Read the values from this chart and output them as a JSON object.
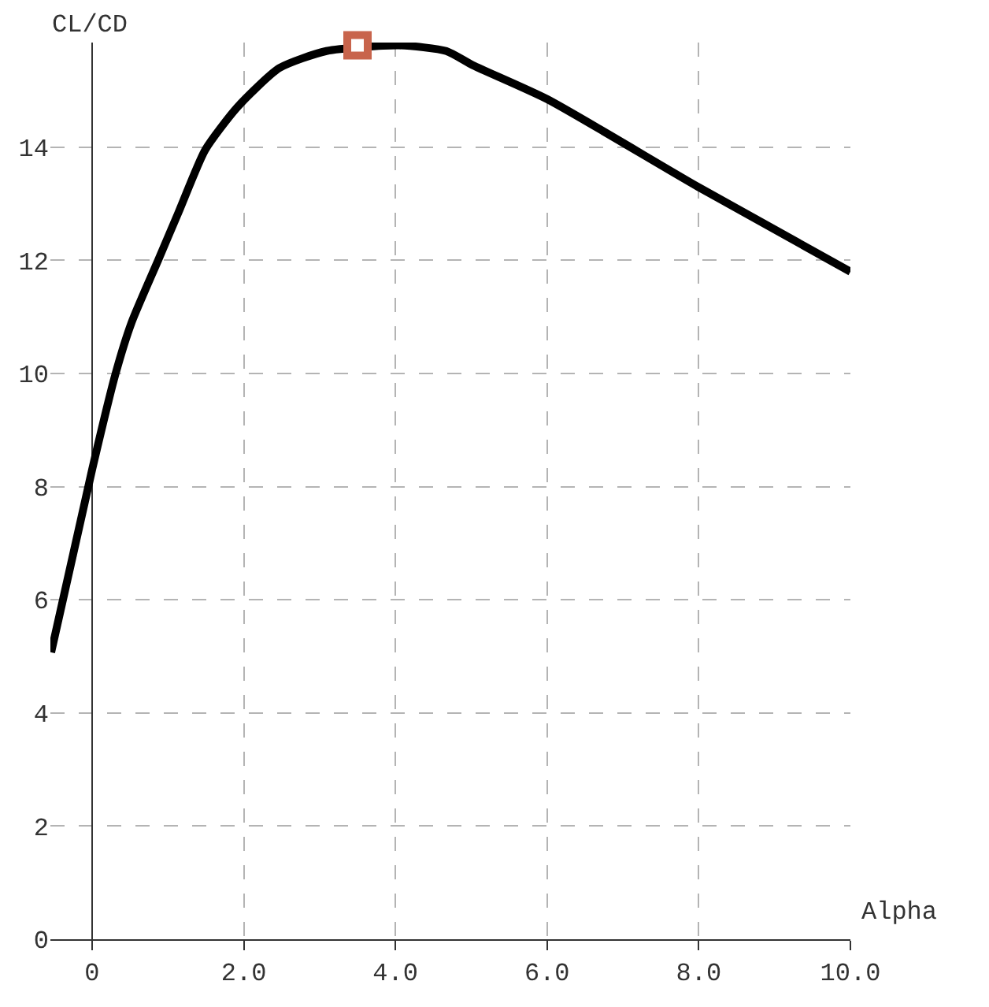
{
  "chart_data": {
    "type": "line",
    "xlabel": "Alpha",
    "ylabel": "CL/CD",
    "xlim": [
      -0.55,
      10
    ],
    "ylim": [
      0,
      15.85
    ],
    "xticks": [
      {
        "value": 0,
        "label": "0"
      },
      {
        "value": 2,
        "label": "2.0"
      },
      {
        "value": 4,
        "label": "4.0"
      },
      {
        "value": 6,
        "label": "6.0"
      },
      {
        "value": 8,
        "label": "8.0"
      },
      {
        "value": 10,
        "label": "10.0"
      }
    ],
    "yticks": [
      0,
      2,
      4,
      6,
      8,
      10,
      12,
      14
    ],
    "grid": true,
    "line_style": "solid",
    "series": [
      {
        "color": "#000000",
        "marker": "none",
        "x": [
          -0.54,
          0,
          0.31,
          0.52,
          0.87,
          1.14,
          1.49,
          1.91,
          2.47,
          3.09,
          4.05,
          4.67,
          5.02,
          6.0,
          7.99,
          10
        ],
        "values": [
          5.07,
          8.3,
          10.0,
          10.9,
          12.0,
          12.85,
          13.95,
          14.7,
          15.4,
          15.7,
          15.8,
          15.7,
          15.45,
          14.85,
          13.3,
          11.8
        ]
      },
      {
        "type": "scatter",
        "color": "#c8644c",
        "marker": "square",
        "x": [
          3.5
        ],
        "values": [
          15.8
        ]
      }
    ]
  }
}
